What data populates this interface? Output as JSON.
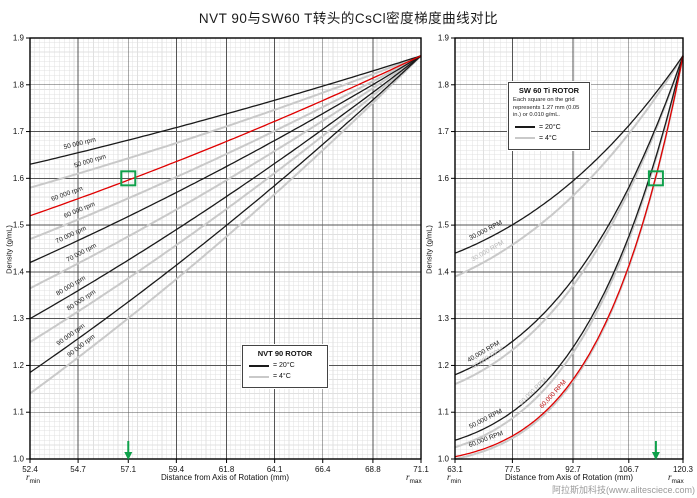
{
  "page": {
    "title": "NVT 90与SW60 T转头的CsCl密度梯度曲线对比",
    "watermark": "阿拉斯加科技(www.alitesciece.com)"
  },
  "colors": {
    "black_curve": "#1a1a1a",
    "gray_curve": "#c9c9c9",
    "red_curve": "#e00000",
    "green_marker": "#0fa14b",
    "minor_grid": "#e0e0e0",
    "major_grid": "#555555",
    "frame": "#000000"
  },
  "chart_data": [
    {
      "type": "line",
      "rotor": "NVT 90",
      "x_axis": {
        "label": "Distance from Axis of Rotation (mm)",
        "min": 52.4,
        "max": 71.1,
        "ticks": [
          52.4,
          54.7,
          57.1,
          59.4,
          61.8,
          64.1,
          66.4,
          68.8,
          71.1
        ],
        "r_symbol": "r",
        "rmin_sub": "min",
        "rmax_sub": "max"
      },
      "y_axis": {
        "label": "Density (g/mL)",
        "min": 1.0,
        "max": 1.9,
        "ticks": [
          1.0,
          1.1,
          1.2,
          1.3,
          1.4,
          1.5,
          1.6,
          1.7,
          1.8,
          1.9
        ]
      },
      "grid": {
        "minor_per_major_x": 10,
        "minor_density_step": 0.01,
        "on": true
      },
      "convergence_density": 1.862,
      "legend": {
        "title": "NVT 90 ROTOR",
        "note": "",
        "entries": [
          {
            "label": "=  20°C",
            "color_role": "black"
          },
          {
            "label": "=  4°C",
            "color_role": "gray"
          }
        ]
      },
      "series": [
        {
          "name": "50 000 rpm",
          "temp_c": 20,
          "color_role": "black",
          "start_density": 1.63,
          "shape_exponent": 2,
          "labels": [
            {
              "r": 54.8,
              "color": "#1a1a1a"
            }
          ]
        },
        {
          "name": "50 000 rpm",
          "temp_c": 4,
          "color_role": "gray",
          "start_density": 1.58,
          "shape_exponent": 2,
          "labels": [
            {
              "r": 55.3,
              "color": "#1a1a1a"
            }
          ]
        },
        {
          "name": "60 000 rpm",
          "temp_c": 20,
          "color_role": "red",
          "start_density": 1.52,
          "shape_exponent": 2,
          "labels": [
            {
              "r": 54.2,
              "color": "#1a1a1a"
            }
          ]
        },
        {
          "name": "60 000 rpm",
          "temp_c": 4,
          "color_role": "gray",
          "start_density": 1.47,
          "shape_exponent": 2,
          "labels": [
            {
              "r": 54.8,
              "color": "#1a1a1a"
            }
          ]
        },
        {
          "name": "70 000 rpm",
          "temp_c": 20,
          "color_role": "black",
          "start_density": 1.42,
          "shape_exponent": 2,
          "labels": [
            {
              "r": 54.4,
              "color": "#1a1a1a"
            }
          ]
        },
        {
          "name": "70 000 rpm",
          "temp_c": 4,
          "color_role": "gray",
          "start_density": 1.365,
          "shape_exponent": 2,
          "labels": [
            {
              "r": 54.9,
              "color": "#1a1a1a"
            }
          ]
        },
        {
          "name": "80 000 rpm",
          "temp_c": 20,
          "color_role": "black",
          "start_density": 1.3,
          "shape_exponent": 2,
          "labels": [
            {
              "r": 54.4,
              "color": "#1a1a1a"
            }
          ]
        },
        {
          "name": "80 000 rpm",
          "temp_c": 4,
          "color_role": "gray",
          "start_density": 1.25,
          "shape_exponent": 2,
          "labels": [
            {
              "r": 54.9,
              "color": "#1a1a1a"
            }
          ]
        },
        {
          "name": "90 000 rpm",
          "temp_c": 20,
          "color_role": "black",
          "start_density": 1.185,
          "shape_exponent": 2,
          "labels": [
            {
              "r": 54.4,
              "color": "#1a1a1a"
            }
          ]
        },
        {
          "name": "90 000 rpm",
          "temp_c": 4,
          "color_role": "gray",
          "start_density": 1.14,
          "shape_exponent": 2,
          "labels": [
            {
              "r": 54.9,
              "color": "#1a1a1a"
            }
          ]
        }
      ],
      "marker": {
        "square_r": 57.1,
        "square_density": 1.6,
        "arrow_r": 57.1
      }
    },
    {
      "type": "line",
      "rotor": "SW 60 Ti",
      "x_axis": {
        "label": "Distance from Axis of Rotation (mm)",
        "min": 63.1,
        "max": 120.3,
        "ticks": [
          63.1,
          77.5,
          92.7,
          106.7,
          120.3
        ],
        "r_symbol": "r",
        "rmin_sub": "min",
        "rmax_sub": "max"
      },
      "y_axis": {
        "label": "Density (g/mL)",
        "min": 1.0,
        "max": 1.9,
        "ticks": [
          1.0,
          1.1,
          1.2,
          1.3,
          1.4,
          1.5,
          1.6,
          1.7,
          1.8,
          1.9
        ]
      },
      "grid": {
        "minor_per_major_x": 10,
        "minor_density_step": 0.01,
        "on": true
      },
      "convergence_density": 1.862,
      "legend": {
        "title": "SW 60 Ti ROTOR",
        "note": "Each square on the grid represents 1.27 mm (0.05 in.) or 0.010 g/mL.",
        "entries": [
          {
            "label": "=  20°C",
            "color_role": "black"
          },
          {
            "label": "=  4°C",
            "color_role": "gray"
          }
        ]
      },
      "series": [
        {
          "name": "30,000 RPM",
          "temp_c": 20,
          "color_role": "black",
          "start_density": 1.44,
          "shape_exponent": 3,
          "labels": [
            {
              "r": 71.0,
              "color": "#1a1a1a"
            }
          ]
        },
        {
          "name": "30,000 RPM",
          "temp_c": 4,
          "color_role": "gray",
          "start_density": 1.39,
          "shape_exponent": 3,
          "labels": [
            {
              "r": 71.5,
              "color": "#b8b8b8"
            }
          ]
        },
        {
          "name": "40,000 RPM",
          "temp_c": 20,
          "color_role": "black",
          "start_density": 1.18,
          "shape_exponent": 4,
          "labels": [
            {
              "r": 70.5,
              "color": "#1a1a1a"
            }
          ]
        },
        {
          "name": "40,000 RPM",
          "temp_c": 4,
          "color_role": "gray",
          "start_density": 1.16,
          "shape_exponent": 4,
          "labels": [
            {
              "r": 71.5,
              "color": "#b8b8b8"
            }
          ]
        },
        {
          "name": "50,000 RPM",
          "temp_c": 20,
          "color_role": "black",
          "start_density": 1.04,
          "shape_exponent": 5,
          "labels": [
            {
              "r": 71.0,
              "color": "#1a1a1a"
            }
          ]
        },
        {
          "name": "50,000 RPM",
          "temp_c": 4,
          "color_role": "gray",
          "start_density": 1.025,
          "shape_exponent": 5,
          "labels": [
            {
              "r": 83.0,
              "color": "#b8b8b8"
            }
          ]
        },
        {
          "name": "60,000 RPM",
          "temp_c": 20,
          "color_role": "red",
          "start_density": 1.005,
          "shape_exponent": 6,
          "labels": [
            {
              "r": 71.0,
              "color": "#1a1a1a"
            },
            {
              "r": 88.0,
              "color": "#c01414"
            }
          ]
        },
        {
          "name": "60,000 RPM",
          "temp_c": 4,
          "color_role": "gray",
          "start_density": 1.0,
          "shape_exponent": 6,
          "labels": []
        }
      ],
      "marker": {
        "square_r": 113.5,
        "square_density": 1.6,
        "arrow_r": 113.5
      }
    }
  ]
}
